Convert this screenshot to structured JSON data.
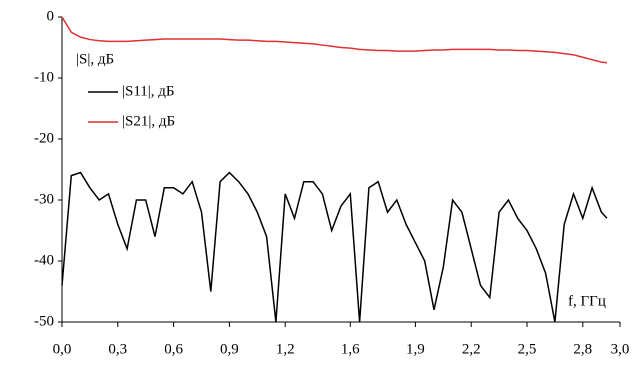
{
  "chart_data": {
    "type": "line",
    "y_label": "|S|, дБ",
    "x_label": "f, ГГц",
    "x": [
      0.0,
      0.05,
      0.1,
      0.15,
      0.2,
      0.25,
      0.3,
      0.35,
      0.4,
      0.45,
      0.5,
      0.55,
      0.6,
      0.65,
      0.7,
      0.75,
      0.8,
      0.85,
      0.9,
      0.95,
      1.0,
      1.05,
      1.1,
      1.15,
      1.2,
      1.25,
      1.3,
      1.35,
      1.4,
      1.45,
      1.5,
      1.55,
      1.6,
      1.65,
      1.7,
      1.75,
      1.8,
      1.85,
      1.9,
      1.95,
      2.0,
      2.05,
      2.1,
      2.15,
      2.2,
      2.25,
      2.3,
      2.35,
      2.4,
      2.45,
      2.5,
      2.55,
      2.6,
      2.65,
      2.7,
      2.75,
      2.8,
      2.85,
      2.9,
      2.93
    ],
    "series": [
      {
        "name": "|S11|, дБ",
        "color": "#000000",
        "values": [
          -44,
          -26,
          -25.5,
          -28,
          -30,
          -29,
          -34,
          -38,
          -30,
          -30,
          -36,
          -28,
          -28,
          -29,
          -27,
          -32,
          -45,
          -27,
          -25.5,
          -27,
          -29,
          -32,
          -36,
          -50,
          -29,
          -33,
          -27,
          -27,
          -29,
          -35,
          -31,
          -29,
          -50,
          -28,
          -27,
          -32,
          -30,
          -34,
          -37,
          -40,
          -48,
          -41,
          -30,
          -32,
          -38,
          -44,
          -46,
          -32,
          -30,
          -33,
          -35,
          -38,
          -42,
          -50,
          -34,
          -29,
          -33,
          -28,
          -32,
          -33
        ]
      },
      {
        "name": "|S21|, дБ",
        "color": "#e03030",
        "values": [
          0,
          -2.5,
          -3.3,
          -3.7,
          -3.9,
          -4,
          -4,
          -4,
          -3.9,
          -3.8,
          -3.7,
          -3.6,
          -3.6,
          -3.6,
          -3.6,
          -3.6,
          -3.6,
          -3.6,
          -3.7,
          -3.8,
          -3.8,
          -3.9,
          -4,
          -4,
          -4.1,
          -4.2,
          -4.3,
          -4.4,
          -4.6,
          -4.8,
          -5,
          -5.1,
          -5.3,
          -5.4,
          -5.5,
          -5.5,
          -5.6,
          -5.6,
          -5.6,
          -5.5,
          -5.4,
          -5.4,
          -5.3,
          -5.3,
          -5.3,
          -5.3,
          -5.3,
          -5.4,
          -5.4,
          -5.5,
          -5.5,
          -5.6,
          -5.7,
          -5.8,
          -6,
          -6.2,
          -6.6,
          -7,
          -7.4,
          -7.5
        ]
      }
    ],
    "xlim": [
      0,
      3.0
    ],
    "ylim": [
      -50,
      0
    ],
    "xticks": [
      {
        "value": 0,
        "label": "0,0"
      },
      {
        "value": 0.3,
        "label": "0,3"
      },
      {
        "value": 0.6,
        "label": "0,6"
      },
      {
        "value": 0.9,
        "label": "0,9"
      },
      {
        "value": 1.2,
        "label": "1,2"
      },
      {
        "value": 1.55,
        "label": "1,6"
      },
      {
        "value": 1.9,
        "label": "1,9"
      },
      {
        "value": 2.2,
        "label": "2,2"
      },
      {
        "value": 2.5,
        "label": "2,5"
      },
      {
        "value": 2.8,
        "label": "2,8"
      },
      {
        "value": 3.0,
        "label": "3,0"
      }
    ],
    "yticks": [
      0,
      -10,
      -20,
      -30,
      -40,
      -50
    ],
    "grid": false
  }
}
